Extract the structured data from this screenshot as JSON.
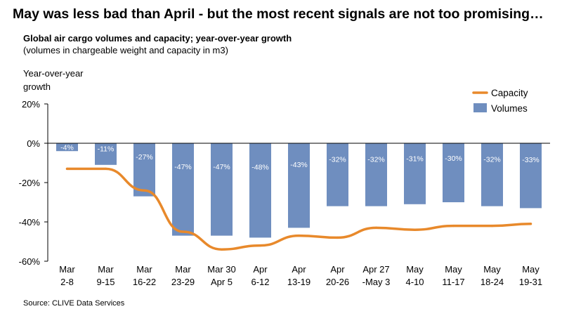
{
  "headline": "May was less bad than April - but the most recent signals are not too promising…",
  "subtitle": "Global air cargo volumes and capacity; year-over-year growth",
  "subnote": "(volumes in chargeable weight and capacity in m3)",
  "source": "Source: CLIVE Data Services",
  "chart_data": {
    "type": "bar",
    "ylabel": [
      "Year-over-year",
      "growth"
    ],
    "ylim": [
      -60,
      20
    ],
    "yticks": [
      {
        "value": 20,
        "label": "20%"
      },
      {
        "value": 0,
        "label": "0%"
      },
      {
        "value": -20,
        "label": "-20%"
      },
      {
        "value": -40,
        "label": "-40%"
      },
      {
        "value": -60,
        "label": "-60%"
      }
    ],
    "categories": [
      [
        "Mar",
        "2-8"
      ],
      [
        "Mar",
        "9-15"
      ],
      [
        "Mar",
        "16-22"
      ],
      [
        "Mar",
        "23-29"
      ],
      [
        "Mar 30",
        "Apr 5"
      ],
      [
        "Apr",
        "6-12"
      ],
      [
        "Apr",
        "13-19"
      ],
      [
        "Apr",
        "20-26"
      ],
      [
        "Apr 27",
        "-May 3"
      ],
      [
        "May",
        "4-10"
      ],
      [
        "May",
        "11-17"
      ],
      [
        "May",
        "18-24"
      ],
      [
        "May",
        "19-31"
      ]
    ],
    "series": [
      {
        "name": "Volumes",
        "kind": "bar",
        "color": "#6F8EBF",
        "values": [
          -4,
          -11,
          -27,
          -47,
          -47,
          -48,
          -43,
          -32,
          -32,
          -31,
          -30,
          -32,
          -33
        ],
        "labels": [
          "-4%",
          "-11%",
          "-27%",
          "-47%",
          "-47%",
          "-48%",
          "-43%",
          "-32%",
          "-32%",
          "-31%",
          "-30%",
          "-32%",
          "-33%"
        ]
      },
      {
        "name": "Capacity",
        "kind": "line",
        "color": "#E8892B",
        "values": [
          -13,
          -13,
          -24,
          -45,
          -54,
          -52,
          -47,
          -48,
          -43,
          -44,
          -42,
          -42,
          -41
        ]
      }
    ],
    "legend": {
      "position": "top-right",
      "order": [
        "Capacity",
        "Volumes"
      ]
    },
    "grid": false
  }
}
